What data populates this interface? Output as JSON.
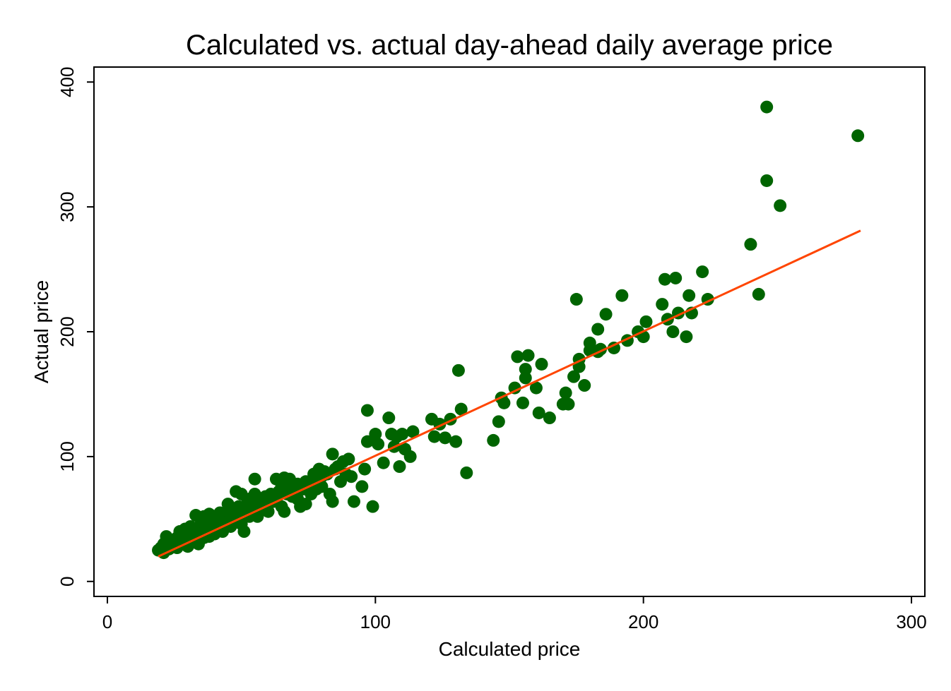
{
  "chart_data": {
    "type": "scatter",
    "title": "Calculated vs. actual day-ahead daily average price",
    "xlabel": "Calculated price",
    "ylabel": "Actual price",
    "xlim": [
      -5,
      305
    ],
    "ylim": [
      -12,
      412
    ],
    "xticks": [
      0,
      100,
      200,
      300
    ],
    "yticks": [
      0,
      100,
      200,
      300,
      400
    ],
    "grid": false,
    "legend": "none",
    "colors": {
      "points": "#006400",
      "fit_line": "#ff4500"
    },
    "points": [
      [
        19,
        25
      ],
      [
        20,
        27
      ],
      [
        21,
        23
      ],
      [
        21,
        30
      ],
      [
        22,
        36
      ],
      [
        22,
        28
      ],
      [
        23,
        26
      ],
      [
        23,
        32
      ],
      [
        24,
        29
      ],
      [
        25,
        31
      ],
      [
        26,
        27
      ],
      [
        26,
        35
      ],
      [
        27,
        33
      ],
      [
        27,
        40
      ],
      [
        28,
        30
      ],
      [
        28,
        37
      ],
      [
        29,
        34
      ],
      [
        29,
        42
      ],
      [
        30,
        28
      ],
      [
        30,
        38
      ],
      [
        31,
        35
      ],
      [
        31,
        44
      ],
      [
        32,
        32
      ],
      [
        32,
        40
      ],
      [
        33,
        53
      ],
      [
        33,
        37
      ],
      [
        34,
        43
      ],
      [
        34,
        30
      ],
      [
        35,
        48
      ],
      [
        35,
        38
      ],
      [
        36,
        52
      ],
      [
        36,
        35
      ],
      [
        37,
        45
      ],
      [
        37,
        41
      ],
      [
        38,
        54
      ],
      [
        38,
        36
      ],
      [
        39,
        48
      ],
      [
        39,
        40
      ],
      [
        40,
        52
      ],
      [
        40,
        38
      ],
      [
        41,
        46
      ],
      [
        41,
        44
      ],
      [
        42,
        55
      ],
      [
        42,
        42
      ],
      [
        43,
        50
      ],
      [
        43,
        40
      ],
      [
        44,
        54
      ],
      [
        44,
        46
      ],
      [
        45,
        62
      ],
      [
        45,
        48
      ],
      [
        46,
        52
      ],
      [
        46,
        44
      ],
      [
        47,
        56
      ],
      [
        47,
        58
      ],
      [
        48,
        72
      ],
      [
        48,
        50
      ],
      [
        49,
        60
      ],
      [
        49,
        54
      ],
      [
        50,
        70
      ],
      [
        50,
        46
      ],
      [
        51,
        40
      ],
      [
        51,
        58
      ],
      [
        52,
        62
      ],
      [
        52,
        55
      ],
      [
        53,
        52
      ],
      [
        53,
        66
      ],
      [
        54,
        56
      ],
      [
        54,
        60
      ],
      [
        55,
        70
      ],
      [
        55,
        82
      ],
      [
        56,
        60
      ],
      [
        56,
        52
      ],
      [
        57,
        64
      ],
      [
        58,
        66
      ],
      [
        58,
        58
      ],
      [
        59,
        68
      ],
      [
        60,
        62
      ],
      [
        60,
        56
      ],
      [
        61,
        70
      ],
      [
        62,
        64
      ],
      [
        63,
        82
      ],
      [
        63,
        66
      ],
      [
        64,
        72
      ],
      [
        65,
        60
      ],
      [
        65,
        76
      ],
      [
        66,
        83
      ],
      [
        66,
        56
      ],
      [
        67,
        70
      ],
      [
        68,
        74
      ],
      [
        68,
        82
      ],
      [
        69,
        68
      ],
      [
        70,
        76
      ],
      [
        71,
        78
      ],
      [
        71,
        66
      ],
      [
        72,
        60
      ],
      [
        73,
        74
      ],
      [
        74,
        80
      ],
      [
        74,
        62
      ],
      [
        75,
        78
      ],
      [
        76,
        70
      ],
      [
        77,
        86
      ],
      [
        78,
        82
      ],
      [
        78,
        74
      ],
      [
        79,
        90
      ],
      [
        80,
        84
      ],
      [
        80,
        76
      ],
      [
        81,
        88
      ],
      [
        82,
        86
      ],
      [
        83,
        70
      ],
      [
        84,
        102
      ],
      [
        84,
        64
      ],
      [
        85,
        90
      ],
      [
        86,
        92
      ],
      [
        87,
        80
      ],
      [
        88,
        96
      ],
      [
        89,
        86
      ],
      [
        90,
        98
      ],
      [
        91,
        84
      ],
      [
        92,
        64
      ],
      [
        95,
        76
      ],
      [
        96,
        90
      ],
      [
        97,
        137
      ],
      [
        97,
        112
      ],
      [
        99,
        60
      ],
      [
        100,
        118
      ],
      [
        101,
        110
      ],
      [
        103,
        95
      ],
      [
        105,
        131
      ],
      [
        106,
        118
      ],
      [
        107,
        108
      ],
      [
        108,
        116
      ],
      [
        109,
        92
      ],
      [
        110,
        118
      ],
      [
        111,
        106
      ],
      [
        113,
        100
      ],
      [
        114,
        120
      ],
      [
        121,
        130
      ],
      [
        122,
        116
      ],
      [
        124,
        126
      ],
      [
        126,
        115
      ],
      [
        128,
        130
      ],
      [
        130,
        112
      ],
      [
        131,
        169
      ],
      [
        132,
        138
      ],
      [
        134,
        87
      ],
      [
        144,
        113
      ],
      [
        146,
        128
      ],
      [
        147,
        147
      ],
      [
        148,
        143
      ],
      [
        152,
        155
      ],
      [
        153,
        180
      ],
      [
        155,
        143
      ],
      [
        156,
        170
      ],
      [
        157,
        181
      ],
      [
        156,
        163
      ],
      [
        160,
        155
      ],
      [
        162,
        174
      ],
      [
        161,
        135
      ],
      [
        165,
        131
      ],
      [
        170,
        142
      ],
      [
        171,
        151
      ],
      [
        172,
        142
      ],
      [
        174,
        164
      ],
      [
        175,
        226
      ],
      [
        176,
        172
      ],
      [
        176,
        178
      ],
      [
        178,
        157
      ],
      [
        180,
        185
      ],
      [
        180,
        191
      ],
      [
        183,
        184
      ],
      [
        183,
        202
      ],
      [
        184,
        186
      ],
      [
        186,
        214
      ],
      [
        189,
        187
      ],
      [
        192,
        229
      ],
      [
        194,
        193
      ],
      [
        198,
        200
      ],
      [
        200,
        196
      ],
      [
        201,
        208
      ],
      [
        207,
        222
      ],
      [
        208,
        242
      ],
      [
        209,
        210
      ],
      [
        211,
        200
      ],
      [
        212,
        243
      ],
      [
        213,
        215
      ],
      [
        216,
        196
      ],
      [
        217,
        229
      ],
      [
        218,
        215
      ],
      [
        222,
        248
      ],
      [
        224,
        226
      ],
      [
        240,
        270
      ],
      [
        243,
        230
      ],
      [
        246,
        380
      ],
      [
        246,
        321
      ],
      [
        251,
        301
      ],
      [
        280,
        357
      ]
    ],
    "fit_line": [
      [
        19,
        20
      ],
      [
        281,
        281
      ]
    ]
  }
}
